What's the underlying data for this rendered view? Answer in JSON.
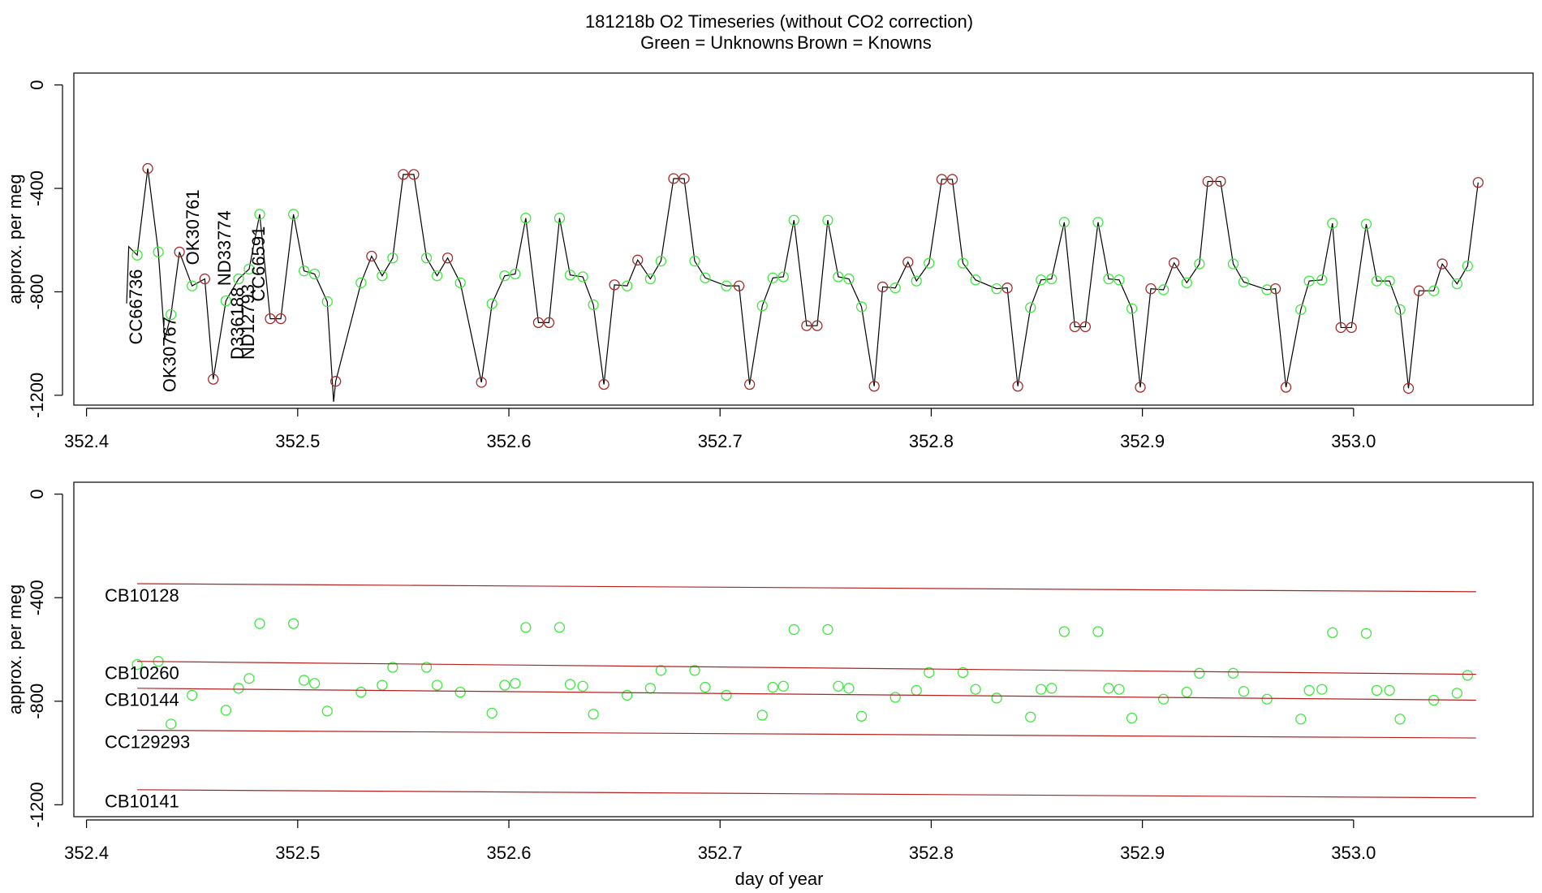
{
  "chart_data": [
    {
      "type": "line",
      "title": "181218b   O2 Timeseries (without CO2 correction)",
      "ylabel": "approx. per meg",
      "xlim": [
        352.394,
        353.085
      ],
      "ylim": [
        -1238,
        46
      ],
      "xticks": [
        352.4,
        352.5,
        352.6,
        352.7,
        352.8,
        352.9,
        {
          "value": 353.0,
          "label": "353.0"
        }
      ],
      "yticks": [
        0,
        -400,
        -800,
        -1200
      ],
      "series": [
        {
          "style": "line",
          "color": "#000000",
          "x": [
            352.419,
            352.42,
            352.424,
            352.429,
            352.434,
            352.437,
            352.44,
            352.444,
            352.45,
            352.456,
            352.46,
            352.466,
            352.472,
            352.477,
            352.482,
            352.487,
            352.492,
            352.498,
            352.503,
            352.508,
            352.514,
            352.517,
            352.518,
            352.53,
            352.535,
            352.54,
            352.545,
            352.55,
            352.555,
            352.561,
            352.566,
            352.571,
            352.577,
            352.587,
            352.592,
            352.598,
            352.603,
            352.608,
            352.614,
            352.619,
            352.624,
            352.629,
            352.635,
            352.64,
            352.645,
            352.65,
            352.656,
            352.661,
            352.667,
            352.672,
            352.678,
            352.683,
            352.688,
            352.693,
            352.703,
            352.709,
            352.714,
            352.72,
            352.725,
            352.73,
            352.735,
            352.741,
            352.746,
            352.751,
            352.756,
            352.761,
            352.767,
            352.773,
            352.777,
            352.783,
            352.789,
            352.793,
            352.799,
            352.805,
            352.81,
            352.815,
            352.821,
            352.831,
            352.836,
            352.841,
            352.847,
            352.852,
            352.857,
            352.863,
            352.868,
            352.873,
            352.879,
            352.884,
            352.889,
            352.895,
            352.899,
            352.904,
            352.91,
            352.915,
            352.921,
            352.927,
            352.931,
            352.937,
            352.943,
            352.948,
            352.959,
            352.963,
            352.968,
            352.975,
            352.979,
            352.985,
            352.99,
            352.994,
            352.999,
            353.006,
            353.011,
            353.017,
            353.022,
            353.026,
            353.031,
            353.038,
            353.042,
            353.049,
            353.054,
            353.059
          ],
          "values": [
            -845,
            -625,
            -658,
            -323,
            -646,
            -985,
            -888,
            -646,
            -777,
            -750,
            -1138,
            -835,
            -750,
            -712,
            -500,
            -904,
            -904,
            -500,
            -719,
            -731,
            -838,
            -1225,
            -1146,
            -765,
            -662,
            -738,
            -669,
            -346,
            -346,
            -669,
            -738,
            -669,
            -765,
            -1150,
            -846,
            -738,
            -731,
            -515,
            -919,
            -919,
            -515,
            -735,
            -742,
            -850,
            -1158,
            -773,
            -777,
            -677,
            -750,
            -681,
            -362,
            -362,
            -681,
            -746,
            -777,
            -777,
            -1158,
            -854,
            -746,
            -742,
            -523,
            -931,
            -931,
            -523,
            -742,
            -750,
            -858,
            -1165,
            -781,
            -785,
            -685,
            -758,
            -689,
            -365,
            -365,
            -689,
            -754,
            -788,
            -785,
            -1165,
            -861,
            -754,
            -750,
            -531,
            -935,
            -935,
            -531,
            -750,
            -754,
            -865,
            -1169,
            -788,
            -792,
            -688,
            -765,
            -692,
            -373,
            -373,
            -692,
            -762,
            -792,
            -788,
            -1169,
            -869,
            -758,
            -754,
            -535,
            -938,
            -938,
            -538,
            -758,
            -758,
            -869,
            -1173,
            -796,
            -796,
            -692,
            -769,
            -700,
            -377
          ]
        },
        {
          "name": "Green = Unknowns",
          "style": "points",
          "color": "#3ee83e",
          "x": [
            352.424,
            352.434,
            352.44,
            352.45,
            352.466,
            352.472,
            352.477,
            352.482,
            352.498,
            352.503,
            352.508,
            352.514,
            352.53,
            352.54,
            352.545,
            352.561,
            352.566,
            352.577,
            352.592,
            352.598,
            352.603,
            352.608,
            352.624,
            352.629,
            352.635,
            352.64,
            352.656,
            352.667,
            352.672,
            352.688,
            352.693,
            352.703,
            352.72,
            352.725,
            352.73,
            352.735,
            352.751,
            352.756,
            352.761,
            352.767,
            352.783,
            352.793,
            352.799,
            352.815,
            352.821,
            352.831,
            352.847,
            352.852,
            352.857,
            352.863,
            352.879,
            352.884,
            352.889,
            352.895,
            352.91,
            352.921,
            352.927,
            352.943,
            352.948,
            352.959,
            352.975,
            352.979,
            352.985,
            352.99,
            353.006,
            353.011,
            353.017,
            353.022,
            353.038,
            353.049,
            353.054
          ],
          "values": [
            -658,
            -646,
            -888,
            -777,
            -835,
            -750,
            -712,
            -500,
            -500,
            -719,
            -731,
            -838,
            -765,
            -738,
            -669,
            -669,
            -738,
            -765,
            -846,
            -738,
            -731,
            -515,
            -515,
            -735,
            -742,
            -850,
            -777,
            -750,
            -681,
            -681,
            -746,
            -777,
            -854,
            -746,
            -742,
            -523,
            -523,
            -742,
            -750,
            -858,
            -785,
            -758,
            -689,
            -689,
            -754,
            -788,
            -861,
            -754,
            -750,
            -531,
            -531,
            -750,
            -754,
            -865,
            -792,
            -765,
            -692,
            -692,
            -762,
            -792,
            -869,
            -758,
            -754,
            -535,
            -538,
            -758,
            -758,
            -869,
            -796,
            -769,
            -700
          ]
        },
        {
          "name": "Brown = Knowns",
          "style": "points",
          "color": "#a52a2a",
          "x": [
            352.429,
            352.444,
            352.456,
            352.46,
            352.487,
            352.492,
            352.518,
            352.535,
            352.55,
            352.555,
            352.571,
            352.587,
            352.614,
            352.619,
            352.645,
            352.65,
            352.661,
            352.678,
            352.683,
            352.709,
            352.714,
            352.741,
            352.746,
            352.773,
            352.777,
            352.789,
            352.805,
            352.81,
            352.836,
            352.841,
            352.868,
            352.873,
            352.899,
            352.904,
            352.915,
            352.931,
            352.937,
            352.963,
            352.968,
            352.994,
            352.999,
            353.026,
            353.031,
            353.042,
            353.059
          ],
          "values": [
            -323,
            -646,
            -750,
            -1138,
            -904,
            -904,
            -1146,
            -662,
            -346,
            -346,
            -669,
            -1150,
            -919,
            -919,
            -1158,
            -773,
            -677,
            -362,
            -362,
            -777,
            -1158,
            -931,
            -931,
            -1165,
            -781,
            -685,
            -365,
            -365,
            -785,
            -1165,
            -935,
            -935,
            -1169,
            -788,
            -688,
            -373,
            -373,
            -788,
            -1169,
            -938,
            -938,
            -1173,
            -796,
            -692,
            -377
          ]
        }
      ],
      "annotations": [
        {
          "text": "CC66736",
          "x": 352.424,
          "y": -1004,
          "color": "#3ee83e"
        },
        {
          "text": "OK30767",
          "x": 352.44,
          "y": -1188,
          "color": "#3ee83e"
        },
        {
          "text": "OK30761",
          "x": 352.451,
          "y": -696,
          "color": "#3ee83e"
        },
        {
          "text": "ND33774",
          "x": 352.466,
          "y": -777,
          "color": "#3ee83e"
        },
        {
          "text": "D336188",
          "x": 352.472,
          "y": -1062,
          "color": "#3ee83e"
        },
        {
          "text": "ND12793",
          "x": 352.477,
          "y": -1062,
          "color": "#3ee83e"
        },
        {
          "text": "CC66591",
          "x": 352.482,
          "y": -838,
          "color": "#3ee83e"
        }
      ]
    },
    {
      "type": "scatter",
      "xlabel": "day of year",
      "ylabel": "approx. per meg",
      "xlim": [
        352.394,
        353.085
      ],
      "ylim": [
        -1246,
        46
      ],
      "xticks": [
        352.4,
        352.5,
        352.6,
        352.7,
        352.8,
        352.9,
        {
          "value": 353.0,
          "label": "353.0"
        }
      ],
      "yticks": [
        0,
        -400,
        -800,
        -1200
      ],
      "series": [
        {
          "style": "points",
          "color": "#3ee83e",
          "x": [
            352.424,
            352.434,
            352.44,
            352.45,
            352.466,
            352.472,
            352.477,
            352.482,
            352.498,
            352.503,
            352.508,
            352.514,
            352.53,
            352.54,
            352.545,
            352.561,
            352.566,
            352.577,
            352.592,
            352.598,
            352.603,
            352.608,
            352.624,
            352.629,
            352.635,
            352.64,
            352.656,
            352.667,
            352.672,
            352.688,
            352.693,
            352.703,
            352.72,
            352.725,
            352.73,
            352.735,
            352.751,
            352.756,
            352.761,
            352.767,
            352.783,
            352.793,
            352.799,
            352.815,
            352.821,
            352.831,
            352.847,
            352.852,
            352.857,
            352.863,
            352.879,
            352.884,
            352.889,
            352.895,
            352.91,
            352.921,
            352.927,
            352.943,
            352.948,
            352.959,
            352.975,
            352.979,
            352.985,
            352.99,
            353.006,
            353.011,
            353.017,
            353.022,
            353.038,
            353.049,
            353.054
          ],
          "values": [
            -658,
            -646,
            -888,
            -777,
            -835,
            -750,
            -712,
            -500,
            -500,
            -719,
            -731,
            -838,
            -765,
            -738,
            -669,
            -669,
            -738,
            -765,
            -846,
            -738,
            -731,
            -515,
            -515,
            -735,
            -742,
            -850,
            -777,
            -750,
            -681,
            -681,
            -746,
            -777,
            -854,
            -746,
            -742,
            -523,
            -523,
            -742,
            -750,
            -858,
            -785,
            -758,
            -689,
            -689,
            -754,
            -788,
            -861,
            -754,
            -750,
            -531,
            -531,
            -750,
            -754,
            -865,
            -792,
            -765,
            -692,
            -692,
            -762,
            -792,
            -869,
            -758,
            -754,
            -535,
            -538,
            -758,
            -758,
            -869,
            -796,
            -769,
            -700
          ]
        },
        {
          "name": "CB10128",
          "style": "line",
          "color": "#b22222",
          "x": [
            352.424,
            353.058
          ],
          "values": [
            -346,
            -377
          ]
        },
        {
          "name": "CB10260",
          "style": "line",
          "color": "#b22222",
          "x": [
            352.424,
            353.058
          ],
          "values": [
            -646,
            -696
          ]
        },
        {
          "name": "CB10144",
          "style": "line",
          "color": "#b22222",
          "x": [
            352.424,
            353.058
          ],
          "values": [
            -750,
            -796
          ]
        },
        {
          "name": "CC129293",
          "style": "line",
          "color": "#b22222",
          "x": [
            352.424,
            353.058
          ],
          "values": [
            -912,
            -942
          ]
        },
        {
          "name": "CB10141",
          "style": "line",
          "color": "#b22222",
          "x": [
            352.424,
            353.058
          ],
          "values": [
            -1142,
            -1173
          ]
        }
      ]
    }
  ]
}
